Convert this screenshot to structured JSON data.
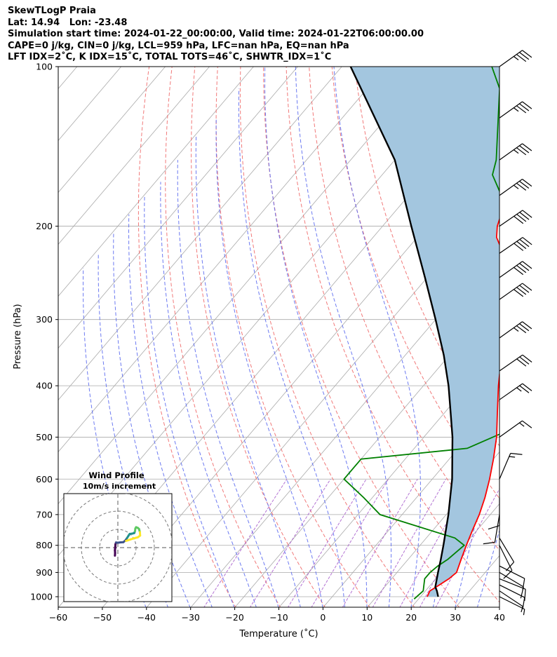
{
  "header": {
    "lines": [
      "SkewTLogP Praia",
      "Lat: 14.94   Lon: -23.48",
      "Simulation start time: 2024-01-22_00:00:00, Valid time: 2024-01-22T06:00:00.00",
      "CAPE=0 j/kg, CIN=0 j/kg, LCL=959 hPa, LFC=nan hPa, EQ=nan hPa",
      "LFT IDX=2˚C, K IDX=15˚C, TOTAL TOTS=46˚C, SHWTR_IDX=1˚C"
    ]
  },
  "chart_data": {
    "type": "skewt-logp",
    "xlabel": "Temperature (˚C)",
    "ylabel": "Pressure (hPa)",
    "xlim": [
      -60,
      40
    ],
    "ylim": [
      1050,
      100
    ],
    "x_ticks": [
      "−60",
      "−50",
      "−40",
      "−30",
      "−20",
      "−10",
      "0",
      "10",
      "20",
      "30",
      "40"
    ],
    "y_ticks": [
      "100",
      "200",
      "300",
      "400",
      "500",
      "600",
      "700",
      "800",
      "900",
      "1000"
    ],
    "grid": true,
    "colors": {
      "temperature": "#ff0000",
      "dewpoint": "#008000",
      "parcel": "#000000",
      "shade": "#a3c6df",
      "dry_adiabats": "#f06a6a",
      "moist_adiabats": "#5c6cf0",
      "mixing_ratio": "#a050c8",
      "isotherms": "#aaaaaa"
    },
    "temperature_profile": [
      [
        1000,
        21.5
      ],
      [
        975,
        21
      ],
      [
        950,
        22
      ],
      [
        925,
        23
      ],
      [
        900,
        23.5
      ],
      [
        850,
        22
      ],
      [
        800,
        20.5
      ],
      [
        750,
        19
      ],
      [
        700,
        17.5
      ],
      [
        650,
        15.5
      ],
      [
        600,
        13
      ],
      [
        550,
        10
      ],
      [
        500,
        6.5
      ],
      [
        450,
        2
      ],
      [
        400,
        -3
      ],
      [
        380,
        -5
      ],
      [
        350,
        -5.5
      ],
      [
        300,
        -10
      ],
      [
        270,
        -16
      ],
      [
        250,
        -21
      ],
      [
        230,
        -26
      ],
      [
        210,
        -32
      ],
      [
        200,
        -34
      ],
      [
        150,
        -42
      ],
      [
        130,
        -48
      ],
      [
        100,
        -57
      ]
    ],
    "dewpoint_profile": [
      [
        1010,
        19
      ],
      [
        975,
        19.5
      ],
      [
        950,
        18.5
      ],
      [
        925,
        17.5
      ],
      [
        900,
        17.5
      ],
      [
        875,
        18
      ],
      [
        850,
        19
      ],
      [
        800,
        20
      ],
      [
        775,
        16.5
      ],
      [
        700,
        -5
      ],
      [
        650,
        -12
      ],
      [
        600,
        -20
      ],
      [
        550,
        -20
      ],
      [
        525,
        2
      ],
      [
        475,
        9.5
      ],
      [
        450,
        9
      ],
      [
        400,
        2.5
      ],
      [
        375,
        0
      ],
      [
        350,
        -3
      ],
      [
        325,
        -8
      ],
      [
        300,
        -12
      ],
      [
        250,
        -22
      ],
      [
        230,
        -26
      ],
      [
        200,
        -32
      ],
      [
        175,
        -39
      ],
      [
        160,
        -45
      ],
      [
        150,
        -47
      ],
      [
        130,
        -53
      ],
      [
        110,
        -60
      ],
      [
        100,
        -66
      ]
    ],
    "parcel_profile": [
      [
        1000,
        24
      ],
      [
        975,
        22.6
      ],
      [
        959,
        21.5
      ],
      [
        900,
        19.3
      ],
      [
        850,
        17.4
      ],
      [
        800,
        15.3
      ],
      [
        700,
        10.5
      ],
      [
        600,
        4.5
      ],
      [
        500,
        -3.5
      ],
      [
        450,
        -8.6
      ],
      [
        400,
        -14.3
      ],
      [
        350,
        -21.3
      ],
      [
        300,
        -30
      ],
      [
        250,
        -40.5
      ],
      [
        200,
        -53.5
      ],
      [
        150,
        -70
      ],
      [
        100,
        -98
      ]
    ],
    "wind_barbs": [
      {
        "p": 100,
        "u": -14,
        "v": -10
      },
      {
        "p": 125,
        "u": -14,
        "v": -10
      },
      {
        "p": 150,
        "u": -14,
        "v": -10
      },
      {
        "p": 175,
        "u": -14,
        "v": -10
      },
      {
        "p": 200,
        "u": -16,
        "v": -11
      },
      {
        "p": 225,
        "u": -16,
        "v": -11
      },
      {
        "p": 250,
        "u": -17,
        "v": -12
      },
      {
        "p": 275,
        "u": -17,
        "v": -12
      },
      {
        "p": 325,
        "u": -14,
        "v": -10
      },
      {
        "p": 375,
        "u": -13,
        "v": -9
      },
      {
        "p": 425,
        "u": -10,
        "v": -7
      },
      {
        "p": 500,
        "u": -7,
        "v": -5
      },
      {
        "p": 600,
        "u": -3,
        "v": -7
      },
      {
        "p": 650,
        "u": 0,
        "v": 6
      },
      {
        "p": 700,
        "u": 1,
        "v": 6
      },
      {
        "p": 775,
        "u": -3,
        "v": 5
      },
      {
        "p": 800,
        "u": -2,
        "v": 4
      },
      {
        "p": 875,
        "u": -4,
        "v": 2
      },
      {
        "p": 900,
        "u": -5,
        "v": 3
      },
      {
        "p": 925,
        "u": -5,
        "v": 2
      },
      {
        "p": 950,
        "u": -4,
        "v": 2
      },
      {
        "p": 975,
        "u": -3,
        "v": 2
      },
      {
        "p": 1000,
        "u": -2,
        "v": 1
      }
    ],
    "hodograph": {
      "title": "Wind Profile",
      "subtitle": "10m/s increment",
      "points": [
        [
          -1.6,
          -4.4
        ],
        [
          -1.5,
          -3
        ],
        [
          -1.6,
          -1.5
        ],
        [
          -1.4,
          0.5
        ],
        [
          -1.3,
          1.8
        ],
        [
          -1.0,
          2.8
        ],
        [
          0.0,
          2.7
        ],
        [
          1.5,
          2.9
        ],
        [
          3.0,
          3.0
        ],
        [
          4.0,
          3.8
        ],
        [
          5.0,
          5.2
        ],
        [
          6.0,
          6.8
        ],
        [
          6.5,
          7.5
        ],
        [
          8.0,
          7.7
        ],
        [
          9.0,
          8.0
        ],
        [
          9.4,
          9.0
        ],
        [
          9.6,
          10.5
        ],
        [
          10.0,
          11.2
        ],
        [
          11.0,
          10.8
        ],
        [
          11.6,
          10.2
        ],
        [
          12.1,
          8.5
        ],
        [
          12.2,
          6.6
        ],
        [
          11.0,
          5.7
        ],
        [
          8.5,
          5.0
        ],
        [
          5.5,
          4.0
        ],
        [
          4.5,
          3.7
        ]
      ],
      "rings": [
        10,
        20,
        30
      ]
    }
  }
}
